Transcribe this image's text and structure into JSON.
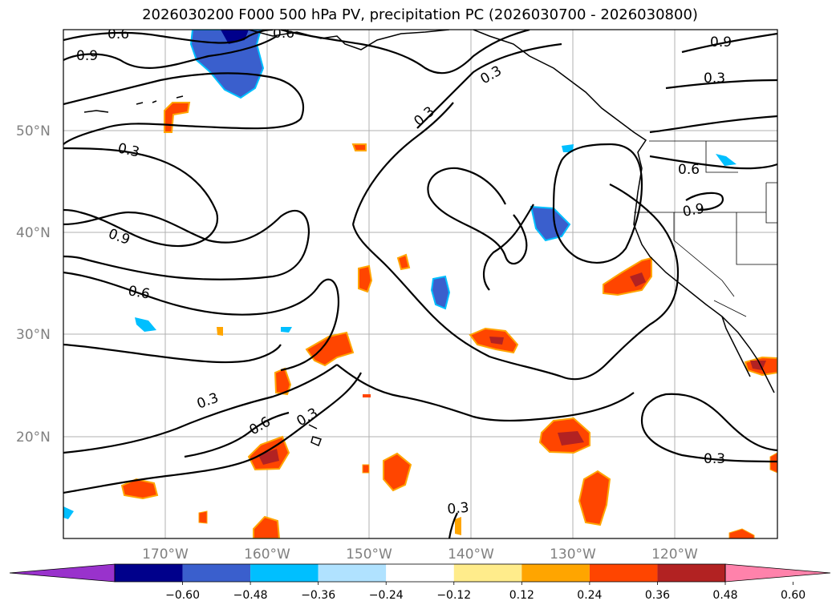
{
  "title": "2026030200 F000 500 hPa PV, precipitation PC (2026030700 - 2026030800)",
  "lat_labels": [
    "50°N",
    "40°N",
    "30°N",
    "20°N"
  ],
  "lon_labels": [
    "170°W",
    "160°W",
    "150°W",
    "140°W",
    "130°W",
    "120°W"
  ],
  "colorbar": {
    "ticks": [
      "−0.60",
      "−0.48",
      "−0.36",
      "−0.24",
      "−0.12",
      "0.12",
      "0.24",
      "0.36",
      "0.48",
      "0.60"
    ],
    "colors": [
      "#9932cc",
      "#00008b",
      "#3a5fcd",
      "#00bfff",
      "#b0e2ff",
      "#ffffff",
      "#ffec8b",
      "#ffa500",
      "#ff4500",
      "#b22222",
      "#ff82ab"
    ]
  },
  "contour_labels": [
    "0.6",
    "0.9",
    "0.6",
    "0.3",
    "0.9",
    "0.3",
    "0.3",
    "0.3",
    "0.9",
    "0.6",
    "0.3",
    "0.6",
    "0.3",
    "0.6",
    "0.9",
    "0.3",
    "0.3"
  ]
}
